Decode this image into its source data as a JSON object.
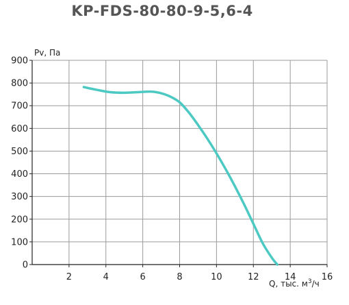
{
  "chart_data": {
    "type": "line",
    "title": "KP-FDS-80-80-9-5,6-4",
    "ylabel": "Pv, Па",
    "xlabel_prefix": "Q, тыс. м",
    "xlabel_sup": "3",
    "xlabel_suffix": "/ч",
    "xlim": [
      0,
      16
    ],
    "ylim": [
      0,
      900
    ],
    "xticks": [
      "2",
      "4",
      "6",
      "8",
      "10",
      "12",
      "14",
      "16"
    ],
    "yticks": [
      "0",
      "100",
      "200",
      "300",
      "400",
      "500",
      "600",
      "700",
      "800",
      "900"
    ],
    "grid": true,
    "line_color": "#4cc9c2",
    "series": [
      {
        "x": [
          2.8,
          3.5,
          4.2,
          5.0,
          5.8,
          6.5,
          7.0,
          7.5,
          8.0,
          8.5,
          9.0,
          9.5,
          10.0,
          10.5,
          11.0,
          11.5,
          12.0,
          12.5,
          13.0,
          13.3
        ],
        "y": [
          782,
          770,
          760,
          757,
          760,
          762,
          755,
          740,
          715,
          670,
          615,
          555,
          490,
          420,
          345,
          265,
          180,
          95,
          30,
          0
        ]
      }
    ]
  }
}
